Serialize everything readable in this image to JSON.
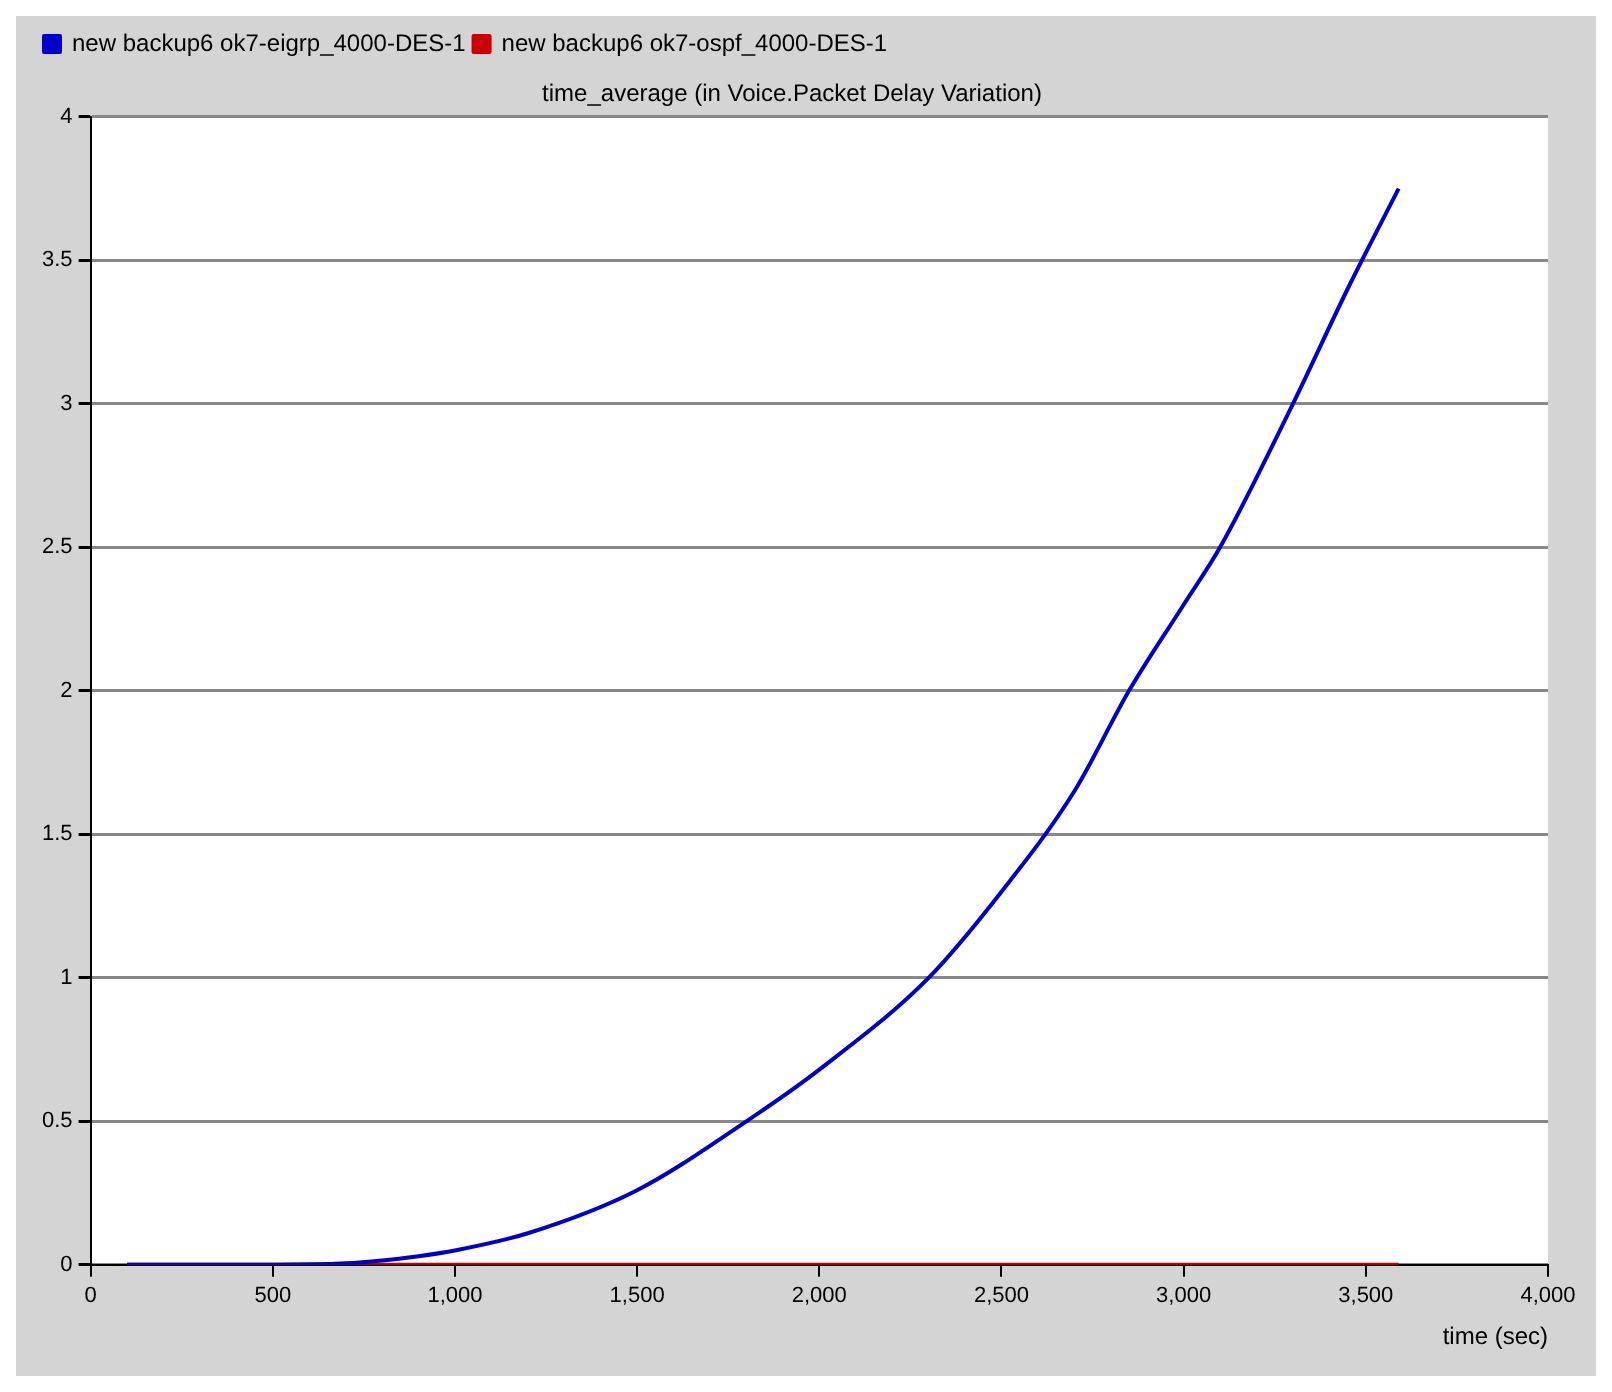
{
  "chart_data": {
    "type": "line",
    "title": "time_average (in Voice.Packet Delay Variation)",
    "xlabel": "time (sec)",
    "xlim": [
      0,
      4000
    ],
    "xticks": [
      0,
      500,
      {
        "value": 1000,
        "label": "1,000"
      },
      {
        "value": 1500,
        "label": "1,500"
      },
      {
        "value": 2000,
        "label": "2,000"
      },
      {
        "value": 2500,
        "label": "2,500"
      },
      {
        "value": 3000,
        "label": "3,000"
      },
      {
        "value": 3500,
        "label": "3,500"
      },
      {
        "value": 4000,
        "label": "4,000"
      }
    ],
    "ylim": [
      0,
      4
    ],
    "yticks": [
      0,
      0.5,
      1,
      1.5,
      2,
      2.5,
      3,
      3.5,
      4
    ],
    "grid": "y",
    "legend": "top left",
    "marker": "none",
    "series": [
      {
        "name": "new backup6 ok7-eigrp_4000-DES-1",
        "color": "#0000cc",
        "x": [
          100,
          500,
          700,
          800,
          900,
          1000,
          1200,
          1500,
          1800,
          2000,
          2300,
          2500,
          2700,
          2850,
          3000,
          3100,
          3300,
          3450,
          3590
        ],
        "values": [
          0,
          0,
          0.005,
          0.015,
          0.03,
          0.05,
          0.11,
          0.26,
          0.5,
          0.68,
          1.0,
          1.3,
          1.65,
          2.0,
          2.3,
          2.5,
          3.0,
          3.4,
          3.75
        ]
      },
      {
        "name": "new backup6 ok7-ospf_4000-DES-1",
        "color": "#cc0000",
        "x": [
          100,
          3590
        ],
        "values": [
          0,
          0
        ]
      }
    ]
  }
}
